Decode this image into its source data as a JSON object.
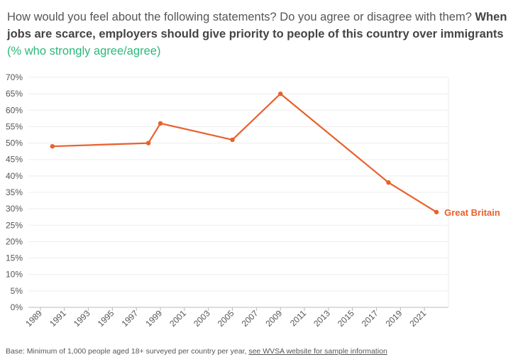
{
  "header": {
    "question": "How would you feel about the following statements? Do you agree or disagree with them?",
    "statement": "When jobs are scarce, employers should give priority to people of this country over immigrants",
    "unit_note": "(% who strongly agree/agree)"
  },
  "footer": {
    "base_text": "Base: Minimum of 1,000 people aged 18+ surveyed per country per year,",
    "link_text": "see WVSA website for sample information"
  },
  "colors": {
    "series": "#e8612c",
    "accent_green": "#2cb77a",
    "grid": "#eeeeee",
    "text": "#555555"
  },
  "chart_data": {
    "type": "line",
    "series": [
      {
        "name": "Great Britain",
        "x": [
          1990,
          1998,
          1999,
          2005,
          2009,
          2018,
          2022
        ],
        "values": [
          49,
          50,
          56,
          51,
          65,
          38,
          29
        ]
      }
    ],
    "xlim": [
      1988,
      2023
    ],
    "ylim": [
      0,
      70
    ],
    "x_ticks": [
      1989,
      1991,
      1993,
      1995,
      1997,
      1999,
      2001,
      2003,
      2005,
      2007,
      2009,
      2011,
      2013,
      2015,
      2017,
      2019,
      2021
    ],
    "x_tick_labels": [
      "1989",
      "1991",
      "1993",
      "1995",
      "1997",
      "1999",
      "2001",
      "2003",
      "2005",
      "2007",
      "2009",
      "2011",
      "2013",
      "2015",
      "2017",
      "2019",
      "2021"
    ],
    "y_ticks": [
      0,
      5,
      10,
      15,
      20,
      25,
      30,
      35,
      40,
      45,
      50,
      55,
      60,
      65,
      70
    ],
    "y_tick_labels": [
      "0%",
      "5%",
      "10%",
      "15%",
      "20%",
      "25%",
      "30%",
      "35%",
      "40%",
      "45%",
      "50%",
      "55%",
      "60%",
      "65%",
      "70%"
    ],
    "grid": true,
    "legend": "end-of-line label"
  }
}
